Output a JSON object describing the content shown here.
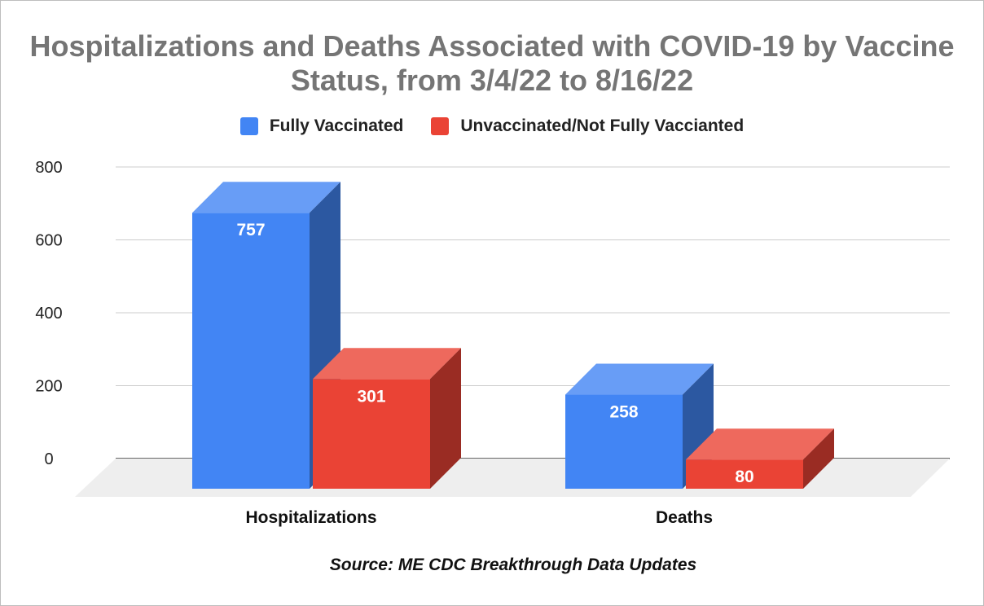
{
  "chart_data": {
    "type": "bar",
    "title": "Hospitalizations and Deaths Associated with COVID-19 by Vaccine Status, from 3/4/22 to 8/16/22",
    "categories": [
      "Hospitalizations",
      "Deaths"
    ],
    "series": [
      {
        "name": "Fully Vaccinated",
        "values": [
          757,
          258
        ],
        "color": "#4285f4"
      },
      {
        "name": "Unvaccinated/Not Fully Vaccianted",
        "values": [
          301,
          80
        ],
        "color": "#ea4335"
      }
    ],
    "yticks": [
      0,
      200,
      400,
      600,
      800
    ],
    "ylim": [
      0,
      800
    ],
    "grid": true,
    "three_d": true,
    "legend_position": "top",
    "source": "Source: ME CDC Breakthrough Data Updates"
  }
}
